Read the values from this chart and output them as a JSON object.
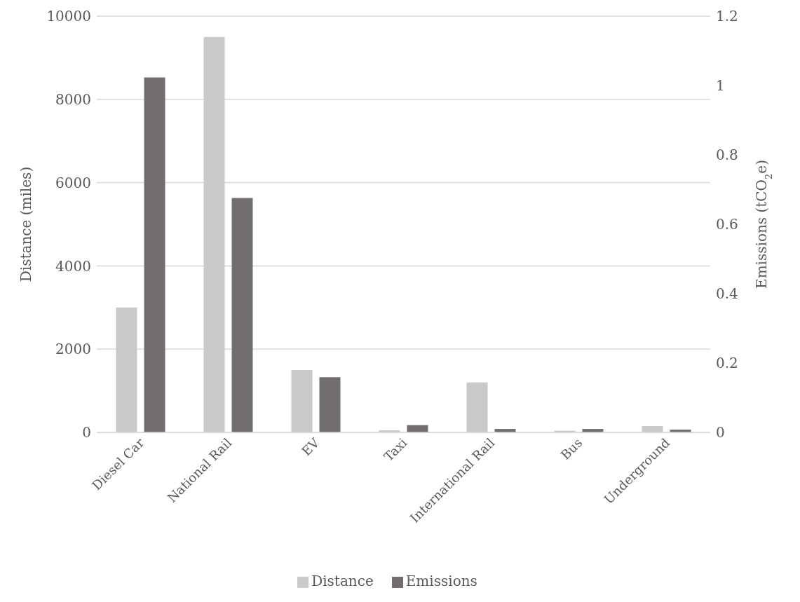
{
  "chart_data": {
    "type": "bar",
    "categories": [
      "Diesel Car",
      "National Rail",
      "EV",
      "Taxi",
      "International Rail",
      "Bus",
      "Underground"
    ],
    "series": [
      {
        "name": "Distance",
        "color": "#c9c9c9",
        "values": [
          3000,
          9500,
          1500,
          50,
          1200,
          40,
          150
        ]
      },
      {
        "name": "Emissions",
        "color": "#736e6e",
        "axis": "y2",
        "values": [
          1.023,
          0.676,
          0.159,
          0.021,
          0.01,
          0.01,
          0.008
        ]
      }
    ],
    "ylabel": "Distance (miles)",
    "y2label": "Emissions (tCO$_{2}$e)",
    "ylim": [
      0,
      10000
    ],
    "yticks": [
      0,
      2000,
      4000,
      6000,
      8000,
      10000
    ],
    "y2lim": [
      0,
      1.2
    ],
    "y2ticks": [
      0,
      0.2,
      0.4,
      0.6,
      0.8,
      1,
      1.2
    ],
    "grid": "y",
    "legend": "bottom"
  }
}
